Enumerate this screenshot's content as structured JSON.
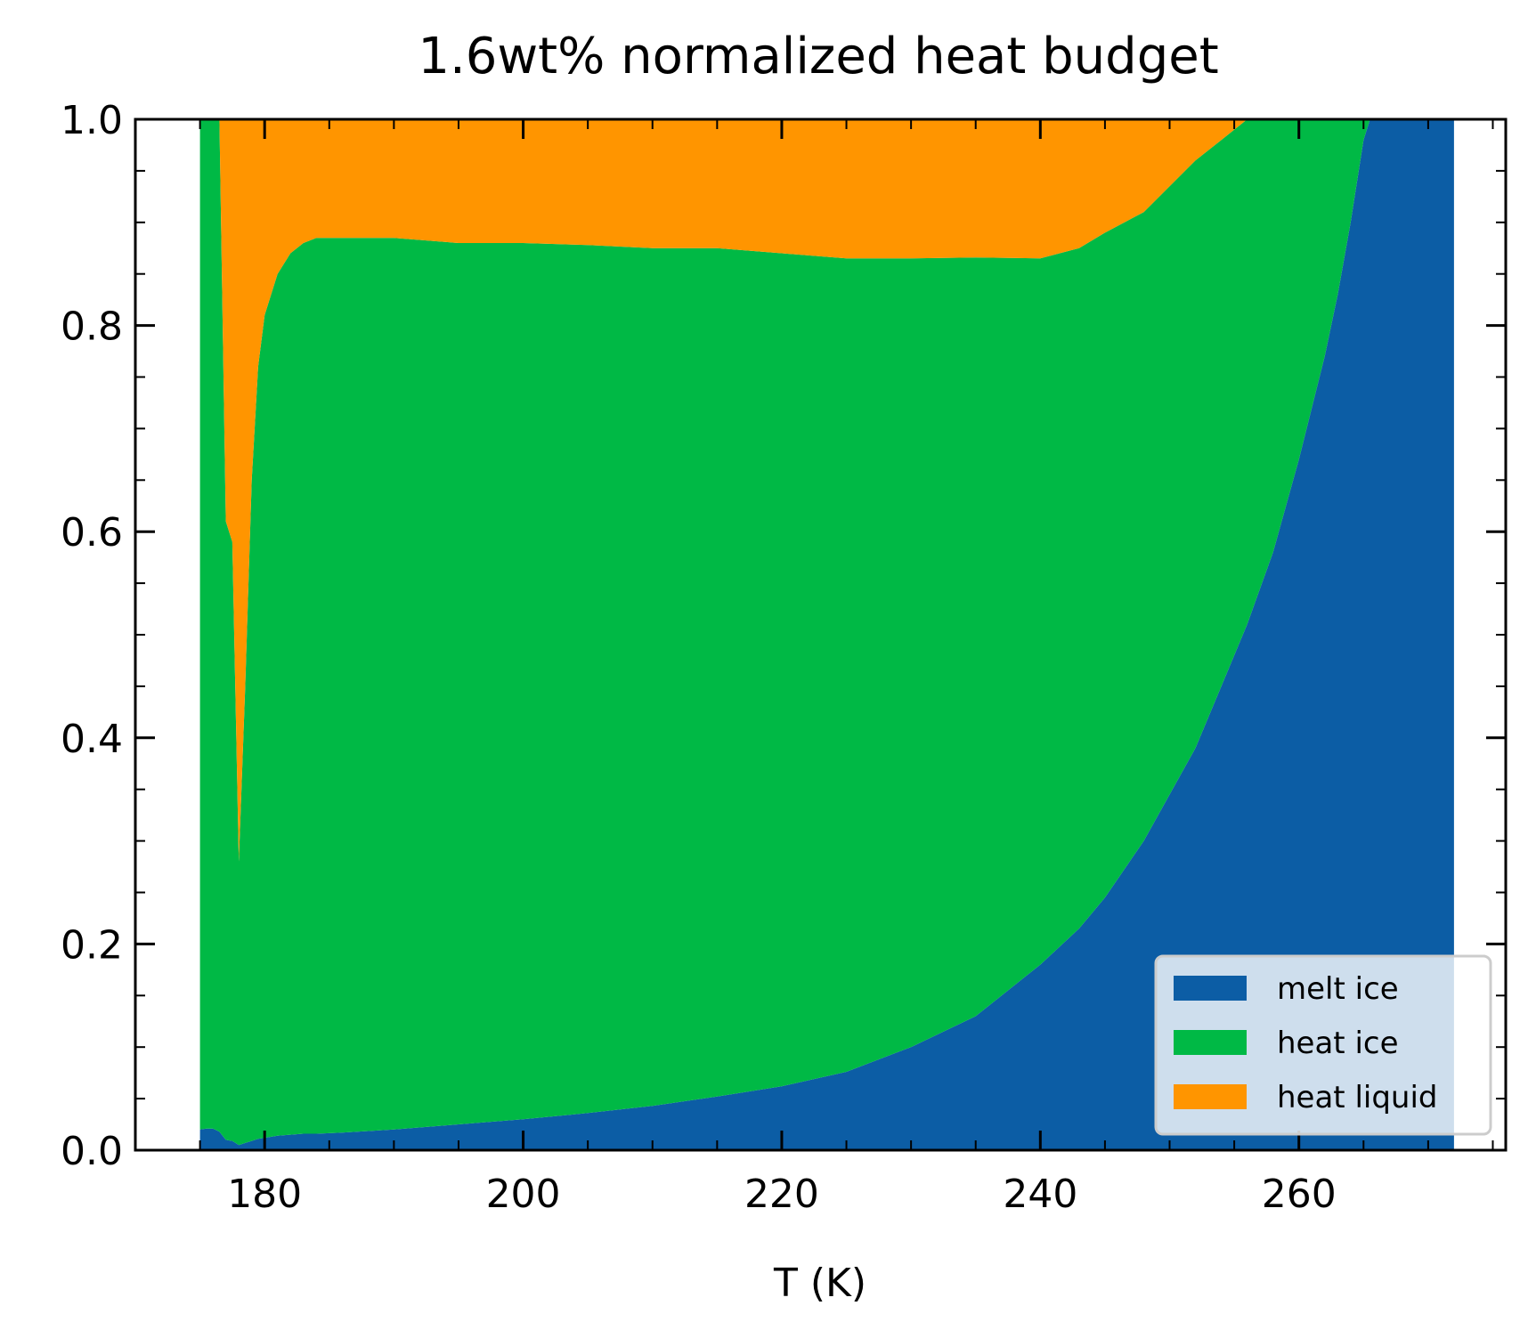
{
  "chart_data": {
    "type": "area",
    "stacked": true,
    "title": "1.6wt% normalized heat budget",
    "xlabel": "T (K)",
    "ylabel": "",
    "xlim": [
      170,
      276
    ],
    "ylim": [
      0,
      1
    ],
    "x_ticks": [
      180,
      200,
      220,
      240,
      260
    ],
    "x_minor_step": 5,
    "y_ticks": [
      0.0,
      0.2,
      0.4,
      0.6,
      0.8,
      1.0
    ],
    "y_tick_labels": [
      "0.0",
      "0.2",
      "0.4",
      "0.6",
      "0.8",
      "1.0"
    ],
    "y_minor_step": 0.05,
    "grid": false,
    "legend_position": "lower-right",
    "x": [
      175,
      175.5,
      176,
      176.5,
      177,
      177.5,
      178,
      178.5,
      179,
      179.5,
      180,
      181,
      182,
      183,
      184,
      186,
      190,
      195,
      200,
      205,
      210,
      215,
      220,
      225,
      230,
      235,
      240,
      243,
      245,
      248,
      250,
      252,
      254,
      256,
      258,
      260,
      262,
      263,
      264,
      265,
      265.5,
      267,
      270,
      272
    ],
    "series": [
      {
        "name": "melt ice",
        "color": "#0c5da5",
        "values": [
          0.02,
          0.021,
          0.021,
          0.018,
          0.01,
          0.009,
          0.005,
          0.007,
          0.009,
          0.011,
          0.012,
          0.014,
          0.015,
          0.016,
          0.016,
          0.017,
          0.02,
          0.025,
          0.03,
          0.036,
          0.043,
          0.052,
          0.062,
          0.076,
          0.1,
          0.13,
          0.18,
          0.215,
          0.245,
          0.3,
          0.345,
          0.39,
          0.45,
          0.51,
          0.58,
          0.67,
          0.77,
          0.83,
          0.9,
          0.98,
          1.0,
          1.0,
          1.0,
          1.0
        ]
      },
      {
        "name": "heat ice",
        "color": "#00b945",
        "values": [
          0.98,
          0.979,
          0.979,
          0.982,
          0.6,
          0.581,
          0.275,
          0.443,
          0.641,
          0.749,
          0.798,
          0.836,
          0.855,
          0.864,
          0.869,
          0.868,
          0.865,
          0.855,
          0.85,
          0.842,
          0.832,
          0.823,
          0.808,
          0.789,
          0.765,
          0.736,
          0.685,
          0.66,
          0.645,
          0.61,
          0.59,
          0.57,
          0.53,
          0.49,
          0.42,
          0.33,
          0.23,
          0.17,
          0.1,
          0.02,
          0.0,
          0.0,
          0.0,
          0.0
        ]
      },
      {
        "name": "heat liquid",
        "color": "#ff9500",
        "values": [
          0.0,
          0.0,
          0.0,
          0.0,
          0.39,
          0.41,
          0.72,
          0.55,
          0.35,
          0.24,
          0.19,
          0.15,
          0.13,
          0.12,
          0.115,
          0.115,
          0.115,
          0.12,
          0.12,
          0.122,
          0.125,
          0.125,
          0.13,
          0.135,
          0.135,
          0.134,
          0.135,
          0.125,
          0.11,
          0.09,
          0.065,
          0.04,
          0.02,
          0.0,
          0.0,
          0.0,
          0.0,
          0.0,
          0.0,
          0.0,
          0.0,
          0.0,
          0.0,
          0.0
        ]
      }
    ]
  }
}
